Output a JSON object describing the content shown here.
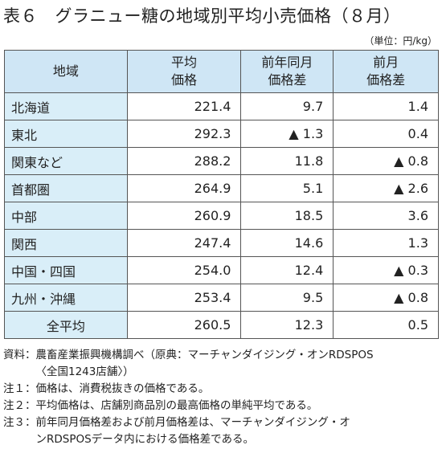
{
  "title": "表６　グラニュー糖の地域別平均小売価格（８月）",
  "unit": "（単位：円/kg）",
  "table": {
    "header": [
      [
        "地域"
      ],
      [
        "平均",
        "価格"
      ],
      [
        "前年同月",
        "価格差"
      ],
      [
        "前月",
        "価格差"
      ]
    ],
    "rows": [
      [
        "北海道",
        "221.4",
        "9.7",
        "1.4"
      ],
      [
        "東北",
        "292.3",
        "▲ 1.3",
        "0.4"
      ],
      [
        "関東など",
        "288.2",
        "11.8",
        "▲ 0.8"
      ],
      [
        "首都圏",
        "264.9",
        "5.1",
        "▲ 2.6"
      ],
      [
        "中部",
        "260.9",
        "18.5",
        "3.6"
      ],
      [
        "関西",
        "247.4",
        "14.6",
        "1.3"
      ],
      [
        "中国・四国",
        "254.0",
        "12.4",
        "▲ 0.3"
      ],
      [
        "九州・沖縄",
        "253.4",
        "9.5",
        "▲ 0.8"
      ],
      [
        "全平均",
        "260.5",
        "12.3",
        "0.5"
      ]
    ]
  },
  "notes": [
    {
      "label": "資料：",
      "lines": [
        "農畜産業振興機構調べ（原典：マーチャンダイジング・オンRDSPOS",
        "〈全国1243店舗〉）"
      ]
    },
    {
      "label": "注１：",
      "lines": [
        "価格は、消費税抜きの価格である。"
      ]
    },
    {
      "label": "注２：",
      "lines": [
        "平均価格は、店舗別商品別の最高価格の単純平均である。"
      ]
    },
    {
      "label": "注３：",
      "lines": [
        "前年同月価格差および前月価格差は、マーチャンダイジング・オ",
        "ンRDSPOSデータ内における価格差である。"
      ]
    }
  ]
}
